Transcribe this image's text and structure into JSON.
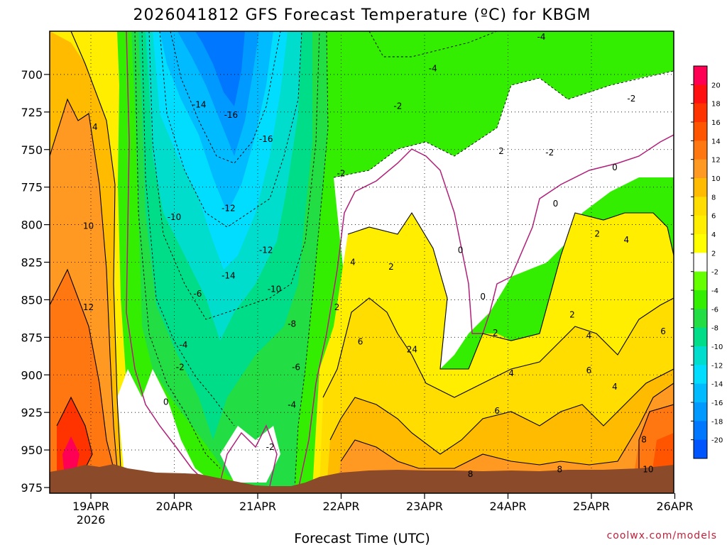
{
  "chart_data": {
    "type": "contour",
    "title": "2026041812 GFS Forecast Temperature (ºC) for KBGM",
    "xlabel": "Forecast Time (UTC)",
    "ylabel": "",
    "credit": "coolwx.com/models",
    "x_ticks": [
      "19APR",
      "20APR",
      "21APR",
      "22APR",
      "23APR",
      "24APR",
      "25APR",
      "26APR"
    ],
    "x_sublabel": "2026",
    "y_ticks": [
      700,
      725,
      750,
      775,
      800,
      825,
      850,
      875,
      900,
      925,
      950,
      975
    ],
    "ylim": [
      975,
      675
    ],
    "colorbar": {
      "labels": [
        20,
        18,
        16,
        14,
        12,
        10,
        8,
        6,
        4,
        2,
        -2,
        -4,
        -6,
        -8,
        -10,
        -12,
        -14,
        -16,
        -18,
        -20
      ],
      "colors": [
        "#ff0055",
        "#ff1010",
        "#ff3300",
        "#ff5500",
        "#ff7711",
        "#ff9922",
        "#ffbb00",
        "#ffdd00",
        "#ffee00",
        "#ffff00",
        "#ffffff",
        "#66ff00",
        "#33ee00",
        "#22dd44",
        "#00dd88",
        "#00ddcc",
        "#00ddff",
        "#00bbff",
        "#0099ff",
        "#0077ff",
        "#0055ff"
      ]
    },
    "contour_labels": [
      {
        "text": "4",
        "day": 0.05,
        "p": 735
      },
      {
        "text": "10",
        "day": -0.03,
        "p": 801
      },
      {
        "text": "12",
        "day": -0.03,
        "p": 855
      },
      {
        "text": "-14",
        "day": 1.3,
        "p": 720
      },
      {
        "text": "-16",
        "day": 1.68,
        "p": 727
      },
      {
        "text": "-16",
        "day": 2.1,
        "p": 743
      },
      {
        "text": "-12",
        "day": 1.65,
        "p": 789
      },
      {
        "text": "-10",
        "day": 1.0,
        "p": 795
      },
      {
        "text": "-14",
        "day": 1.65,
        "p": 834
      },
      {
        "text": "-12",
        "day": 2.1,
        "p": 817
      },
      {
        "text": "-10",
        "day": 2.2,
        "p": 843
      },
      {
        "text": "-6",
        "day": 1.28,
        "p": 846
      },
      {
        "text": "-4",
        "day": 1.11,
        "p": 880
      },
      {
        "text": "-2",
        "day": 1.07,
        "p": 895
      },
      {
        "text": "-8",
        "day": 2.41,
        "p": 866
      },
      {
        "text": "-6",
        "day": 2.46,
        "p": 895
      },
      {
        "text": "-4",
        "day": 2.41,
        "p": 920
      },
      {
        "text": "-2",
        "day": 2.15,
        "p": 948
      },
      {
        "text": "0",
        "day": 0.9,
        "p": 918
      },
      {
        "text": "-2",
        "day": 3.0,
        "p": 766
      },
      {
        "text": "2",
        "day": 2.95,
        "p": 855
      },
      {
        "text": "4",
        "day": 3.14,
        "p": 825
      },
      {
        "text": "6",
        "day": 3.23,
        "p": 878
      },
      {
        "text": "2",
        "day": 3.6,
        "p": 828
      },
      {
        "text": "24",
        "day": 3.85,
        "p": 883
      },
      {
        "text": "-2",
        "day": 3.68,
        "p": 721
      },
      {
        "text": "-4",
        "day": 4.1,
        "p": 696
      },
      {
        "text": "-4",
        "day": 5.4,
        "p": 675
      },
      {
        "text": "-2",
        "day": 6.48,
        "p": 716
      },
      {
        "text": "2",
        "day": 4.92,
        "p": 751
      },
      {
        "text": "-2",
        "day": 5.5,
        "p": 752
      },
      {
        "text": "0",
        "day": 6.28,
        "p": 762
      },
      {
        "text": "0",
        "day": 5.57,
        "p": 786
      },
      {
        "text": "0",
        "day": 4.43,
        "p": 817
      },
      {
        "text": "0",
        "day": 4.7,
        "p": 848
      },
      {
        "text": "2",
        "day": 6.07,
        "p": 806
      },
      {
        "text": "4",
        "day": 6.42,
        "p": 810
      },
      {
        "text": "2",
        "day": 4.85,
        "p": 872
      },
      {
        "text": "2",
        "day": 5.77,
        "p": 860
      },
      {
        "text": "4",
        "day": 5.97,
        "p": 874
      },
      {
        "text": "4",
        "day": 5.04,
        "p": 899
      },
      {
        "text": "6",
        "day": 5.97,
        "p": 897
      },
      {
        "text": "4",
        "day": 6.28,
        "p": 908
      },
      {
        "text": "6",
        "day": 6.86,
        "p": 871
      },
      {
        "text": "6",
        "day": 4.87,
        "p": 924
      },
      {
        "text": "8",
        "day": 4.55,
        "p": 966
      },
      {
        "text": "8",
        "day": 5.62,
        "p": 963
      },
      {
        "text": "8",
        "day": 6.63,
        "p": 943
      },
      {
        "text": "10",
        "day": 6.68,
        "p": 963
      }
    ]
  }
}
